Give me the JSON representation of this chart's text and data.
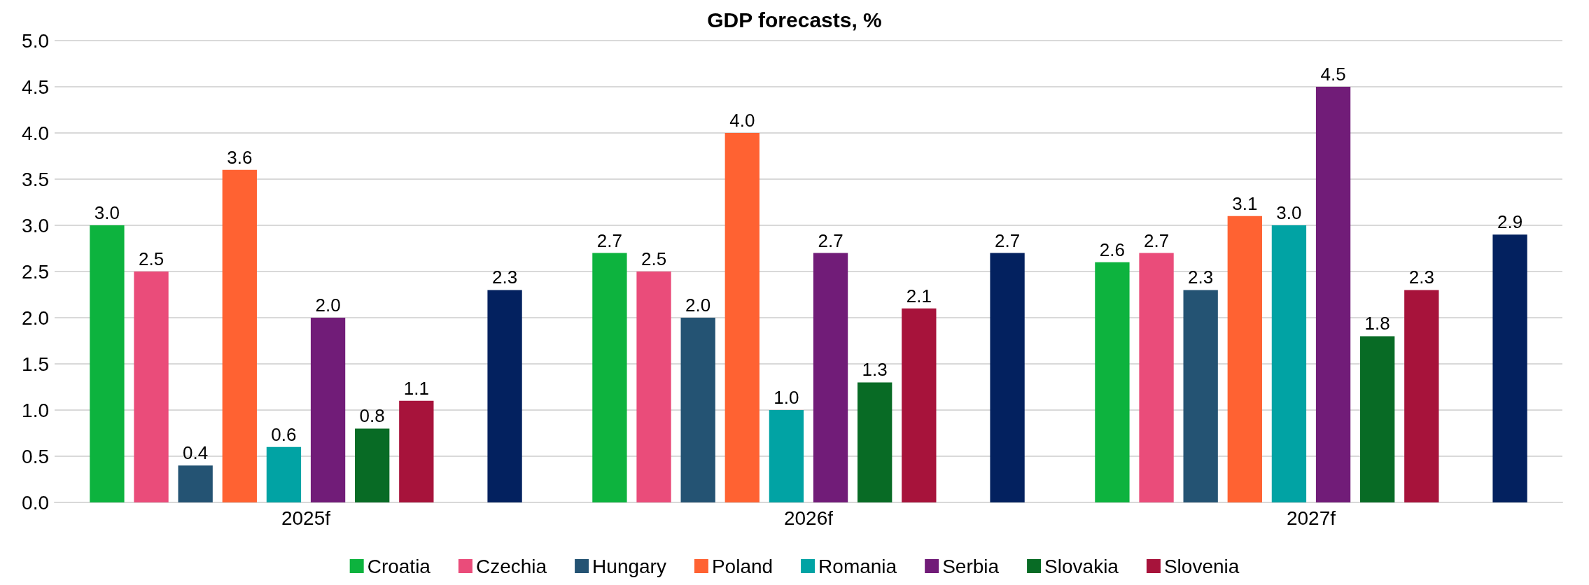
{
  "chart_data": {
    "type": "bar",
    "title": "GDP forecasts, %",
    "categories": [
      "2025f",
      "2026f",
      "2027f"
    ],
    "series": [
      {
        "name": "Croatia",
        "color": "#0db33e",
        "values": [
          3.0,
          2.7,
          2.6
        ],
        "value_labels": [
          "3.0",
          "2.7",
          "2.6"
        ]
      },
      {
        "name": "Czechia",
        "color": "#ea4c7a",
        "values": [
          2.5,
          2.5,
          2.7
        ],
        "value_labels": [
          "2.5",
          "2.5",
          "2.7"
        ]
      },
      {
        "name": "Hungary",
        "color": "#245373",
        "values": [
          0.4,
          2.0,
          2.3
        ],
        "value_labels": [
          "0.4",
          "2.0",
          "2.3"
        ]
      },
      {
        "name": "Poland",
        "color": "#ff6232",
        "values": [
          3.6,
          4.0,
          3.1
        ],
        "value_labels": [
          "3.6",
          "4.0",
          "3.1"
        ]
      },
      {
        "name": "Romania",
        "color": "#01a3a4",
        "values": [
          0.6,
          1.0,
          3.0
        ],
        "value_labels": [
          "0.6",
          "1.0",
          "3.0"
        ]
      },
      {
        "name": "Serbia",
        "color": "#711c78",
        "values": [
          2.0,
          2.7,
          4.5
        ],
        "value_labels": [
          "2.0",
          "2.7",
          "4.5"
        ]
      },
      {
        "name": "Slovakia",
        "color": "#086b25",
        "values": [
          0.8,
          1.3,
          1.8
        ],
        "value_labels": [
          "0.8",
          "1.3",
          "1.8"
        ]
      },
      {
        "name": "Slovenia",
        "color": "#a7133b",
        "values": [
          1.1,
          2.1,
          2.3
        ],
        "value_labels": [
          "1.1",
          "2.1",
          "2.3"
        ]
      },
      {
        "values": [
          null,
          null,
          null
        ]
      },
      {
        "color": "#03215f",
        "values": [
          2.3,
          2.7,
          2.9
        ],
        "value_labels": [
          "2.3",
          "2.7",
          "2.9"
        ]
      }
    ],
    "ylim": [
      0,
      5
    ],
    "yticks": [
      {
        "value": 0,
        "label": "0.0"
      },
      0.5,
      {
        "value": 1,
        "label": "1.0"
      },
      1.5,
      {
        "value": 2,
        "label": "2.0"
      },
      2.5,
      {
        "value": 3,
        "label": "3.0"
      },
      3.5,
      {
        "value": 4,
        "label": "4.0"
      },
      4.5,
      {
        "value": 5,
        "label": "5.0"
      }
    ],
    "grid": "y",
    "legend": "bottom"
  }
}
